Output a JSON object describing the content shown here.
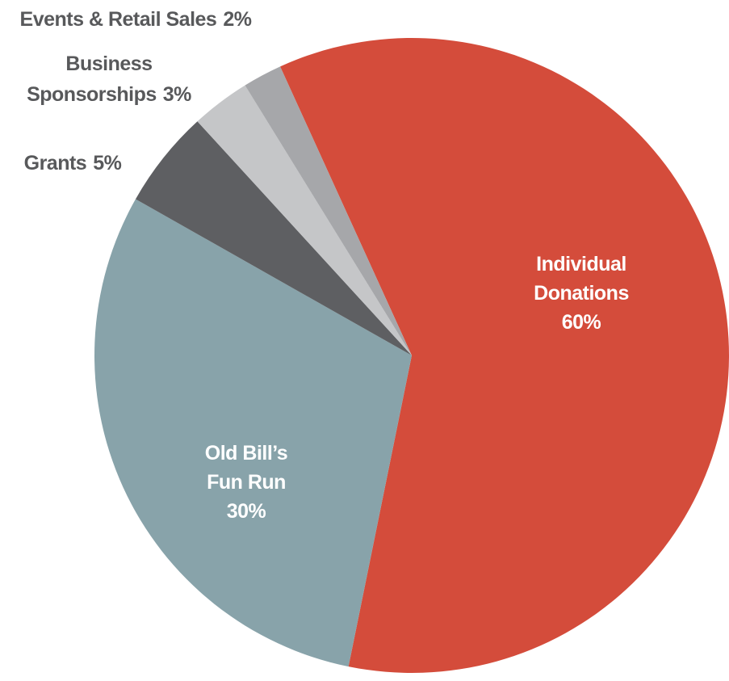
{
  "chart_data": {
    "type": "pie",
    "categories": [
      "Individual Donations",
      "Old Bill’s Fun Run",
      "Grants",
      "Business Sponsorships",
      "Events & Retail Sales"
    ],
    "values": [
      60,
      30,
      5,
      3,
      2
    ],
    "value_labels": [
      "60%",
      "30%",
      "5%",
      "3%",
      "2%"
    ],
    "colors": [
      "#d44c3b",
      "#88a3aa",
      "#5e5f62",
      "#c5c6c8",
      "#a6a7aa"
    ]
  }
}
